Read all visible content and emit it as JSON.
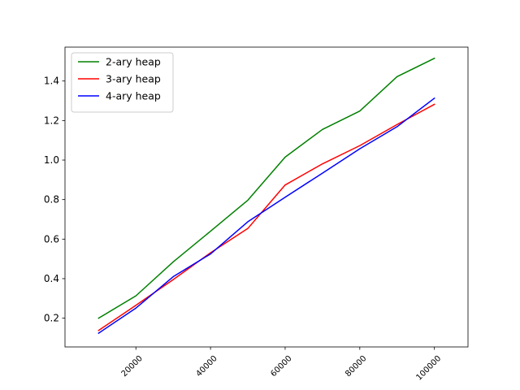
{
  "chart_data": {
    "type": "line",
    "title": "",
    "xlabel": "",
    "ylabel": "",
    "x": [
      10000,
      20000,
      30000,
      40000,
      50000,
      60000,
      70000,
      80000,
      90000,
      100000
    ],
    "xlim": [
      1000,
      109000
    ],
    "ylim": [
      0.0545,
      1.5715
    ],
    "xticks": [
      20000,
      40000,
      60000,
      80000,
      100000
    ],
    "xtick_labels": [
      "20000",
      "40000",
      "60000",
      "80000",
      "100000"
    ],
    "yticks": [
      0.2,
      0.4,
      0.6,
      0.8,
      1.0,
      1.2,
      1.4
    ],
    "ytick_labels": [
      "0.2",
      "0.4",
      "0.6",
      "0.8",
      "1.0",
      "1.2",
      "1.4"
    ],
    "grid": false,
    "legend_position": "top-left",
    "series": [
      {
        "name": "2-ary heap",
        "color": "#008000",
        "values": [
          0.2,
          0.313,
          0.485,
          0.64,
          0.797,
          1.015,
          1.155,
          1.248,
          1.422,
          1.515
        ]
      },
      {
        "name": "3-ary heap",
        "color": "#ff0000",
        "values": [
          0.138,
          0.265,
          0.395,
          0.531,
          0.654,
          0.874,
          0.981,
          1.073,
          1.18,
          1.282
        ]
      },
      {
        "name": "4-ary heap",
        "color": "#0000ff",
        "values": [
          0.124,
          0.251,
          0.41,
          0.525,
          0.688,
          0.812,
          0.934,
          1.057,
          1.169,
          1.313
        ]
      }
    ]
  }
}
